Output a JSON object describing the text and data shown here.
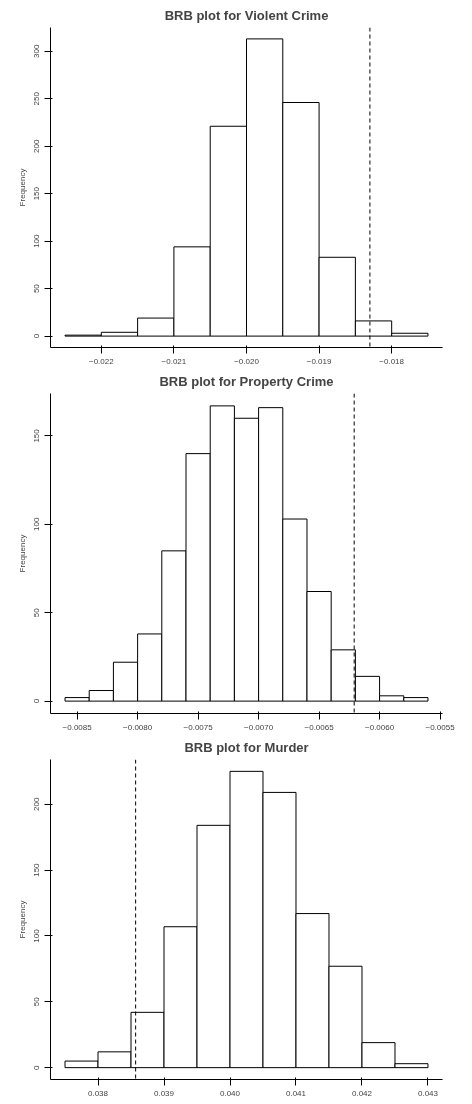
{
  "chart_data": [
    {
      "type": "histogram",
      "title": "BRB plot for Violent Crime",
      "ylabel": "Frequency",
      "bins": [
        -0.0225,
        -0.022,
        -0.0215,
        -0.021,
        -0.0205,
        -0.02,
        -0.0195,
        -0.019,
        -0.0185,
        -0.018,
        -0.0175
      ],
      "values": [
        1,
        4,
        19,
        94,
        221,
        313,
        246,
        83,
        16,
        3
      ],
      "xlim": [
        -0.0227,
        -0.0173
      ],
      "xticks": [
        {
          "value": -0.022,
          "label": "−0.022"
        },
        {
          "value": -0.021,
          "label": "−0.021"
        },
        {
          "value": -0.02,
          "label": "−0.020"
        },
        {
          "value": -0.019,
          "label": "−0.019"
        },
        {
          "value": -0.018,
          "label": "−0.018"
        }
      ],
      "ylim": [
        -12,
        325
      ],
      "yticks": [
        0,
        50,
        100,
        150,
        200,
        250,
        300
      ],
      "ref_lines": [
        {
          "axis": "x",
          "value": -0.0183,
          "line_style": "dashed"
        }
      ],
      "grid": false
    },
    {
      "type": "histogram",
      "title": "BRB plot for Property Crime",
      "ylabel": "Frequency",
      "bins": [
        -0.0086,
        -0.0084,
        -0.0082,
        -0.008,
        -0.0078,
        -0.0076,
        -0.0074,
        -0.0072,
        -0.007,
        -0.0068,
        -0.0066,
        -0.0064,
        -0.0062,
        -0.006,
        -0.0058,
        -0.0056
      ],
      "values": [
        2,
        6,
        22,
        38,
        85,
        140,
        167,
        160,
        166,
        103,
        62,
        29,
        14,
        3,
        2
      ],
      "xlim": [
        -0.00872,
        -0.00548
      ],
      "xticks": [
        {
          "value": -0.0085,
          "label": "−0.0085"
        },
        {
          "value": -0.008,
          "label": "−0.0080"
        },
        {
          "value": -0.0075,
          "label": "−0.0075"
        },
        {
          "value": -0.007,
          "label": "−0.0070"
        },
        {
          "value": -0.0065,
          "label": "−0.0065"
        },
        {
          "value": -0.006,
          "label": "−0.0060"
        },
        {
          "value": -0.0055,
          "label": "−0.0055"
        }
      ],
      "ylim": [
        -7,
        174
      ],
      "yticks": [
        0,
        50,
        100,
        150
      ],
      "ref_lines": [
        {
          "axis": "x",
          "value": -0.00621,
          "line_style": "dashed"
        }
      ],
      "grid": false
    },
    {
      "type": "histogram",
      "title": "BRB plot for Murder",
      "ylabel": "Frequency",
      "bins": [
        0.0375,
        0.038,
        0.0385,
        0.039,
        0.0395,
        0.04,
        0.0405,
        0.041,
        0.0415,
        0.042,
        0.0425,
        0.043
      ],
      "values": [
        5,
        12,
        42,
        107,
        184,
        225,
        209,
        117,
        77,
        19,
        3
      ],
      "xlim": [
        0.03728,
        0.04322
      ],
      "xticks": [
        0.038,
        0.039,
        {
          "value": 0.04,
          "label": "0.040"
        },
        0.041,
        0.042,
        0.043
      ],
      "ylim": [
        -9,
        234
      ],
      "yticks": [
        0,
        50,
        100,
        150,
        200
      ],
      "ref_lines": [
        {
          "axis": "x",
          "value": 0.03857,
          "line_style": "dashed"
        }
      ],
      "grid": false
    }
  ]
}
